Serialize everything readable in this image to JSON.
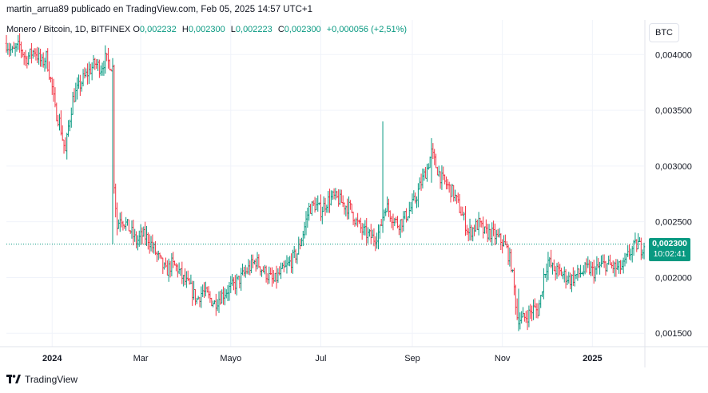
{
  "header": {
    "publish_line": "martin_arrua89 publicado en TradingView.com, Feb 05, 2025 14:57 UTC+1"
  },
  "legend": {
    "symbol": "Monero / Bitcoin, 1D, BITFINEX",
    "o_label": "O",
    "o_value": "0,002232",
    "h_label": "H",
    "h_value": "0,002300",
    "l_label": "L",
    "l_value": "0,002223",
    "c_label": "C",
    "c_value": "0,002300",
    "change": "+0,000056 (+2,51%)"
  },
  "currency_button": "BTC",
  "last_price": {
    "price": "0,002300",
    "countdown": "10:02:41"
  },
  "footer": {
    "brand": "TradingView",
    "logo_icon": "tradingview-logo-icon"
  },
  "colors": {
    "up": "#089981",
    "down": "#f23645",
    "grid": "#f0f3fa",
    "text": "#131722"
  },
  "chart_data": {
    "type": "ohlc",
    "y_ticks": [
      "0,004000",
      "0,003500",
      "0,003000",
      "0,002500",
      "0,002000",
      "0,001500"
    ],
    "x_ticks": [
      "2024",
      "Mar",
      "Mayo",
      "Jul",
      "Sep",
      "Nov",
      "2025"
    ],
    "ylim": [
      0.00138,
      0.00431
    ],
    "xlim": [
      "2023-12-01",
      "2025-02-05"
    ],
    "grid": true,
    "last_close": 0.0023,
    "path": [
      [
        "2023-12-01",
        0.0041
      ],
      [
        "2023-12-05",
        0.00402
      ],
      [
        "2023-12-10",
        0.00408
      ],
      [
        "2023-12-14",
        0.00396
      ],
      [
        "2023-12-20",
        0.00404
      ],
      [
        "2023-12-25",
        0.00392
      ],
      [
        "2023-12-28",
        0.00398
      ],
      [
        "2024-01-01",
        0.0037
      ],
      [
        "2024-01-03",
        0.0035
      ],
      [
        "2024-01-06",
        0.0034
      ],
      [
        "2024-01-08",
        0.00325
      ],
      [
        "2024-01-10",
        0.00312
      ],
      [
        "2024-01-12",
        0.00335
      ],
      [
        "2024-01-15",
        0.0036
      ],
      [
        "2024-01-18",
        0.00368
      ],
      [
        "2024-01-22",
        0.00378
      ],
      [
        "2024-01-26",
        0.00385
      ],
      [
        "2024-01-30",
        0.00392
      ],
      [
        "2024-02-03",
        0.00388
      ],
      [
        "2024-02-06",
        0.00396
      ],
      [
        "2024-02-09",
        0.00392
      ],
      [
        "2024-02-11",
        0.00388
      ],
      [
        "2024-02-12",
        0.00285
      ],
      [
        "2024-02-14",
        0.00245
      ],
      [
        "2024-02-16",
        0.00255
      ],
      [
        "2024-02-20",
        0.00248
      ],
      [
        "2024-02-24",
        0.0024
      ],
      [
        "2024-02-27",
        0.00232
      ],
      [
        "2024-03-02",
        0.00238
      ],
      [
        "2024-03-06",
        0.00235
      ],
      [
        "2024-03-10",
        0.00225
      ],
      [
        "2024-03-14",
        0.00215
      ],
      [
        "2024-03-18",
        0.00205
      ],
      [
        "2024-03-22",
        0.00212
      ],
      [
        "2024-03-26",
        0.00208
      ],
      [
        "2024-03-30",
        0.00198
      ],
      [
        "2024-04-03",
        0.00192
      ],
      [
        "2024-04-08",
        0.0018
      ],
      [
        "2024-04-12",
        0.00188
      ],
      [
        "2024-04-16",
        0.00182
      ],
      [
        "2024-04-20",
        0.00177
      ],
      [
        "2024-04-24",
        0.00183
      ],
      [
        "2024-04-28",
        0.00188
      ],
      [
        "2024-05-03",
        0.00193
      ],
      [
        "2024-05-08",
        0.002
      ],
      [
        "2024-05-13",
        0.00208
      ],
      [
        "2024-05-18",
        0.00215
      ],
      [
        "2024-05-22",
        0.00208
      ],
      [
        "2024-05-26",
        0.00202
      ],
      [
        "2024-05-30",
        0.00196
      ],
      [
        "2024-06-03",
        0.00203
      ],
      [
        "2024-06-07",
        0.00208
      ],
      [
        "2024-06-11",
        0.00215
      ],
      [
        "2024-06-15",
        0.00222
      ],
      [
        "2024-06-19",
        0.0024
      ],
      [
        "2024-06-23",
        0.00262
      ],
      [
        "2024-06-27",
        0.00265
      ],
      [
        "2024-07-01",
        0.0026
      ],
      [
        "2024-07-05",
        0.00268
      ],
      [
        "2024-07-09",
        0.00272
      ],
      [
        "2024-07-13",
        0.0027
      ],
      [
        "2024-07-17",
        0.00265
      ],
      [
        "2024-07-21",
        0.00262
      ],
      [
        "2024-07-25",
        0.0025
      ],
      [
        "2024-07-29",
        0.00242
      ],
      [
        "2024-08-02",
        0.00238
      ],
      [
        "2024-08-06",
        0.00235
      ],
      [
        "2024-08-10",
        0.00242
      ],
      [
        "2024-08-12",
        0.00255
      ],
      [
        "2024-08-14",
        0.00265
      ],
      [
        "2024-08-18",
        0.00255
      ],
      [
        "2024-08-22",
        0.00248
      ],
      [
        "2024-08-26",
        0.00252
      ],
      [
        "2024-08-30",
        0.0026
      ],
      [
        "2024-09-03",
        0.0027
      ],
      [
        "2024-09-07",
        0.00285
      ],
      [
        "2024-09-11",
        0.00298
      ],
      [
        "2024-09-14",
        0.00312
      ],
      [
        "2024-09-17",
        0.003
      ],
      [
        "2024-09-21",
        0.00288
      ],
      [
        "2024-09-25",
        0.00282
      ],
      [
        "2024-09-29",
        0.00275
      ],
      [
        "2024-10-03",
        0.00262
      ],
      [
        "2024-10-06",
        0.00252
      ],
      [
        "2024-10-09",
        0.0024
      ],
      [
        "2024-10-13",
        0.00245
      ],
      [
        "2024-10-16",
        0.00248
      ],
      [
        "2024-10-20",
        0.0024
      ],
      [
        "2024-10-24",
        0.0024
      ],
      [
        "2024-10-28",
        0.00236
      ],
      [
        "2024-11-01",
        0.00232
      ],
      [
        "2024-11-04",
        0.00225
      ],
      [
        "2024-11-07",
        0.00212
      ],
      [
        "2024-11-09",
        0.0019
      ],
      [
        "2024-11-11",
        0.00165
      ],
      [
        "2024-11-14",
        0.00162
      ],
      [
        "2024-11-18",
        0.00166
      ],
      [
        "2024-11-22",
        0.00172
      ],
      [
        "2024-11-25",
        0.0017
      ],
      [
        "2024-11-27",
        0.00182
      ],
      [
        "2024-11-29",
        0.00202
      ],
      [
        "2024-12-02",
        0.00215
      ],
      [
        "2024-12-05",
        0.00208
      ],
      [
        "2024-12-09",
        0.00205
      ],
      [
        "2024-12-13",
        0.00202
      ],
      [
        "2024-12-17",
        0.00198
      ],
      [
        "2024-12-21",
        0.00202
      ],
      [
        "2024-12-25",
        0.00205
      ],
      [
        "2024-12-29",
        0.00208
      ],
      [
        "2025-01-02",
        0.00205
      ],
      [
        "2025-01-06",
        0.0021
      ],
      [
        "2025-01-10",
        0.00212
      ],
      [
        "2025-01-14",
        0.0021
      ],
      [
        "2025-01-18",
        0.00208
      ],
      [
        "2025-01-22",
        0.0021
      ],
      [
        "2025-01-26",
        0.00222
      ],
      [
        "2025-01-30",
        0.00228
      ],
      [
        "2025-02-01",
        0.0023
      ],
      [
        "2025-02-03",
        0.00226
      ],
      [
        "2025-02-05",
        0.0023
      ]
    ],
    "wicks": [
      {
        "date": "2024-08-12",
        "high": 0.0034,
        "low": 0.0024
      },
      {
        "date": "2024-09-14",
        "high": 0.00325,
        "low": 0.00285
      },
      {
        "date": "2024-02-11",
        "high": 0.00395,
        "low": 0.0023
      },
      {
        "date": "2024-11-12",
        "high": 0.0019,
        "low": 0.00152
      }
    ]
  }
}
